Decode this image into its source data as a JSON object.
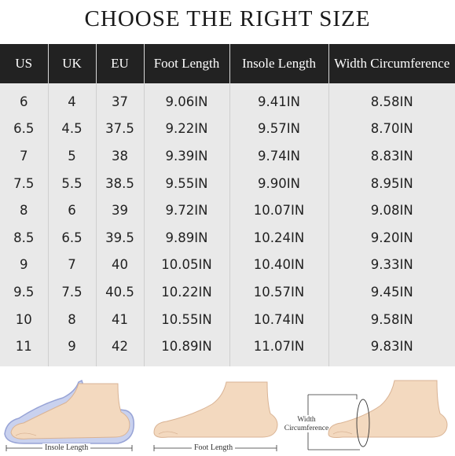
{
  "title": "CHOOSE THE RIGHT SIZE",
  "table": {
    "headers": [
      "US",
      "UK",
      "EU",
      "Foot Length",
      "Insole Length",
      "Width Circumference"
    ],
    "rows": [
      [
        "6",
        "4",
        "37",
        "9.06IN",
        "9.41IN",
        "8.58IN"
      ],
      [
        "6.5",
        "4.5",
        "37.5",
        "9.22IN",
        "9.57IN",
        "8.70IN"
      ],
      [
        "7",
        "5",
        "38",
        "9.39IN",
        "9.74IN",
        "8.83IN"
      ],
      [
        "7.5",
        "5.5",
        "38.5",
        "9.55IN",
        "9.90IN",
        "8.95IN"
      ],
      [
        "8",
        "6",
        "39",
        "9.72IN",
        "10.07IN",
        "9.08IN"
      ],
      [
        "8.5",
        "6.5",
        "39.5",
        "9.89IN",
        "10.24IN",
        "9.20IN"
      ],
      [
        "9",
        "7",
        "40",
        "10.05IN",
        "10.40IN",
        "9.33IN"
      ],
      [
        "9.5",
        "7.5",
        "40.5",
        "10.22IN",
        "10.57IN",
        "9.45IN"
      ],
      [
        "10",
        "8",
        "41",
        "10.55IN",
        "10.74IN",
        "9.58IN"
      ],
      [
        "11",
        "9",
        "42",
        "10.89IN",
        "11.07IN",
        "9.83IN"
      ]
    ]
  },
  "diagrams": {
    "insole_label": "Insole Length",
    "foot_label": "Foot Length",
    "width_label_line1": "Width",
    "width_label_line2": "Circumference"
  },
  "colors": {
    "header_bg": "#222222",
    "body_bg": "#e9e9e9",
    "skin": "#f3d9bf",
    "insole": "#b9c3e6"
  }
}
